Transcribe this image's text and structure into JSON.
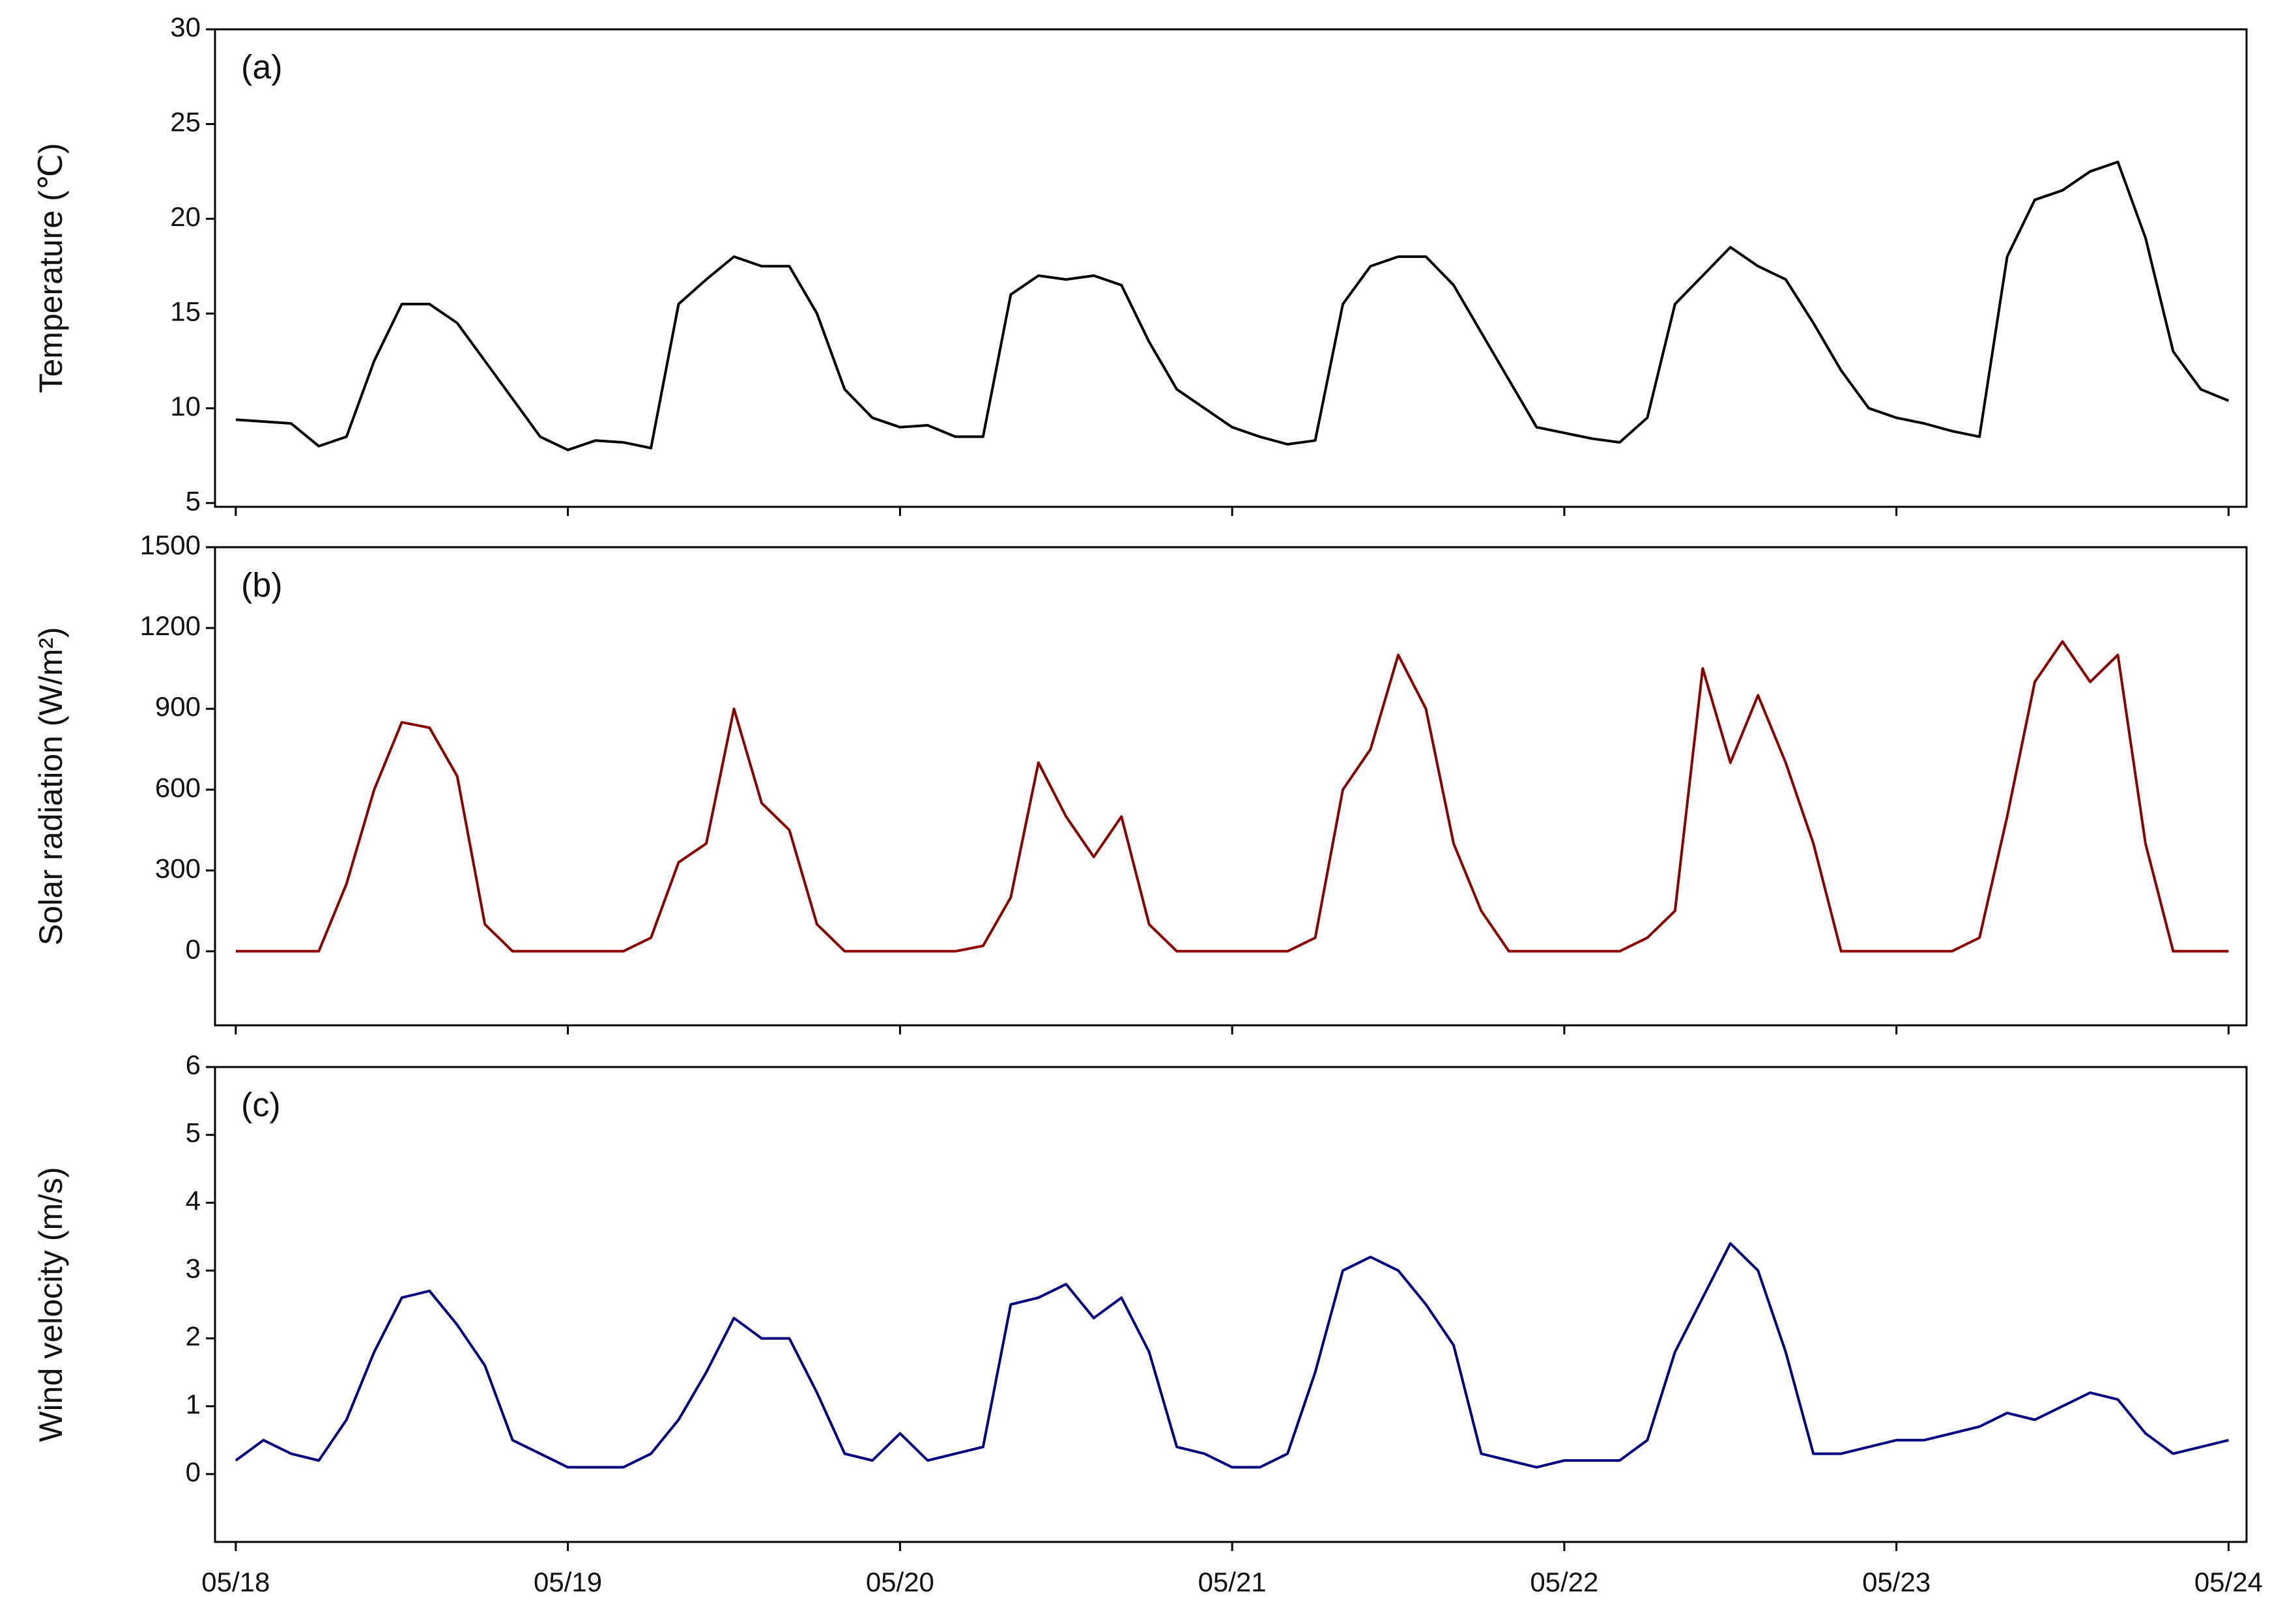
{
  "chart_data": [
    {
      "type": "line",
      "panel_label": "(a)",
      "y_label": "Temperature (℃)",
      "x": [
        0,
        2,
        4,
        6,
        8,
        10,
        12,
        14,
        16,
        18,
        20,
        22,
        24,
        26,
        28,
        30,
        32,
        34,
        36,
        38,
        40,
        42,
        44,
        46,
        48,
        50,
        52,
        54,
        56,
        58,
        60,
        62,
        64,
        66,
        68,
        70,
        72,
        74,
        76,
        78,
        80,
        82,
        84,
        86,
        88,
        90,
        92,
        94,
        96,
        98,
        100,
        102,
        104,
        106,
        108,
        110,
        112,
        114,
        116,
        118,
        120,
        122,
        124,
        126,
        128,
        130,
        132,
        134,
        136,
        138,
        140,
        142,
        144
      ],
      "series": [
        {
          "color": "#000000",
          "values": [
            9.4,
            9.3,
            9.2,
            8.0,
            8.5,
            12.5,
            15.5,
            15.5,
            14.5,
            12.5,
            10.5,
            8.5,
            7.8,
            8.3,
            8.2,
            7.9,
            15.5,
            16.8,
            18.0,
            17.5,
            17.5,
            15.0,
            11.0,
            9.5,
            9.0,
            9.1,
            8.5,
            8.5,
            16.0,
            17.0,
            16.8,
            17.0,
            16.5,
            13.5,
            11.0,
            10.0,
            9.0,
            8.5,
            8.1,
            8.3,
            15.5,
            17.5,
            18.0,
            18.0,
            16.5,
            14.0,
            11.5,
            9.0,
            8.7,
            8.4,
            8.2,
            9.5,
            15.5,
            17.0,
            18.5,
            17.5,
            16.8,
            14.5,
            12.0,
            10.0,
            9.5,
            9.2,
            8.8,
            8.5,
            18.0,
            21.0,
            21.5,
            22.5,
            23.0,
            19.0,
            13.0,
            11.0,
            10.4
          ]
        }
      ],
      "xlim": [
        -1.5,
        145.3
      ],
      "ylim": [
        4.8,
        30
      ],
      "yticks": [
        5,
        10,
        15,
        20,
        25,
        30
      ]
    },
    {
      "type": "line",
      "panel_label": "(b)",
      "y_label": "Solar radiation (W/m²)",
      "x": [
        0,
        2,
        4,
        6,
        8,
        10,
        12,
        14,
        16,
        18,
        20,
        22,
        24,
        26,
        28,
        30,
        32,
        34,
        36,
        38,
        40,
        42,
        44,
        46,
        48,
        50,
        52,
        54,
        56,
        58,
        60,
        62,
        64,
        66,
        68,
        70,
        72,
        74,
        76,
        78,
        80,
        82,
        84,
        86,
        88,
        90,
        92,
        94,
        96,
        98,
        100,
        102,
        104,
        106,
        108,
        110,
        112,
        114,
        116,
        118,
        120,
        122,
        124,
        126,
        128,
        130,
        132,
        134,
        136,
        138,
        140,
        142,
        144
      ],
      "series": [
        {
          "color": "#8b0000",
          "values": [
            0,
            0,
            0,
            0,
            250,
            600,
            850,
            830,
            650,
            100,
            0,
            0,
            0,
            0,
            0,
            50,
            330,
            400,
            900,
            550,
            450,
            100,
            0,
            0,
            0,
            0,
            0,
            20,
            200,
            700,
            500,
            350,
            500,
            100,
            0,
            0,
            0,
            0,
            0,
            50,
            600,
            750,
            1100,
            900,
            400,
            150,
            0,
            0,
            0,
            0,
            0,
            50,
            150,
            1050,
            700,
            950,
            700,
            400,
            0,
            0,
            0,
            0,
            0,
            50,
            500,
            1000,
            1150,
            1000,
            1100,
            400,
            0,
            0,
            0
          ]
        }
      ],
      "xlim": [
        -1.5,
        145.3
      ],
      "ylim": [
        -275,
        1500
      ],
      "yticks": [
        0,
        300,
        600,
        900,
        1200,
        1500
      ]
    },
    {
      "type": "line",
      "panel_label": "(c)",
      "y_label": "Wind velocity (m/s)",
      "x": [
        0,
        2,
        4,
        6,
        8,
        10,
        12,
        14,
        16,
        18,
        20,
        22,
        24,
        26,
        28,
        30,
        32,
        34,
        36,
        38,
        40,
        42,
        44,
        46,
        48,
        50,
        52,
        54,
        56,
        58,
        60,
        62,
        64,
        66,
        68,
        70,
        72,
        74,
        76,
        78,
        80,
        82,
        84,
        86,
        88,
        90,
        92,
        94,
        96,
        98,
        100,
        102,
        104,
        106,
        108,
        110,
        112,
        114,
        116,
        118,
        120,
        122,
        124,
        126,
        128,
        130,
        132,
        134,
        136,
        138,
        140,
        142,
        144
      ],
      "series": [
        {
          "color": "#000080",
          "values": [
            0.2,
            0.5,
            0.3,
            0.2,
            0.8,
            1.8,
            2.6,
            2.7,
            2.2,
            1.6,
            0.5,
            0.3,
            0.1,
            0.1,
            0.1,
            0.3,
            0.8,
            1.5,
            2.3,
            2.0,
            2.0,
            1.2,
            0.3,
            0.2,
            0.6,
            0.2,
            0.3,
            0.4,
            2.5,
            2.6,
            2.8,
            2.3,
            2.6,
            1.8,
            0.4,
            0.3,
            0.1,
            0.1,
            0.3,
            1.5,
            3.0,
            3.2,
            3.0,
            2.5,
            1.9,
            0.3,
            0.2,
            0.1,
            0.2,
            0.2,
            0.2,
            0.5,
            1.8,
            2.6,
            3.4,
            3.0,
            1.8,
            0.3,
            0.3,
            0.4,
            0.5,
            0.5,
            0.6,
            0.7,
            0.9,
            0.8,
            1.0,
            1.2,
            1.1,
            0.6,
            0.3,
            0.4,
            0.5
          ]
        }
      ],
      "xlim": [
        -1.5,
        145.3
      ],
      "ylim": [
        -1,
        6
      ],
      "yticks": [
        0,
        1,
        2,
        3,
        4,
        5,
        6
      ],
      "xticks": [
        {
          "value": 0,
          "label": "05/18"
        },
        {
          "value": 24,
          "label": "05/19"
        },
        {
          "value": 48,
          "label": "05/20"
        },
        {
          "value": 72,
          "label": "05/21"
        },
        {
          "value": 96,
          "label": "05/22"
        },
        {
          "value": 120,
          "label": "05/23"
        },
        {
          "value": 144,
          "label": "05/24"
        }
      ]
    }
  ]
}
